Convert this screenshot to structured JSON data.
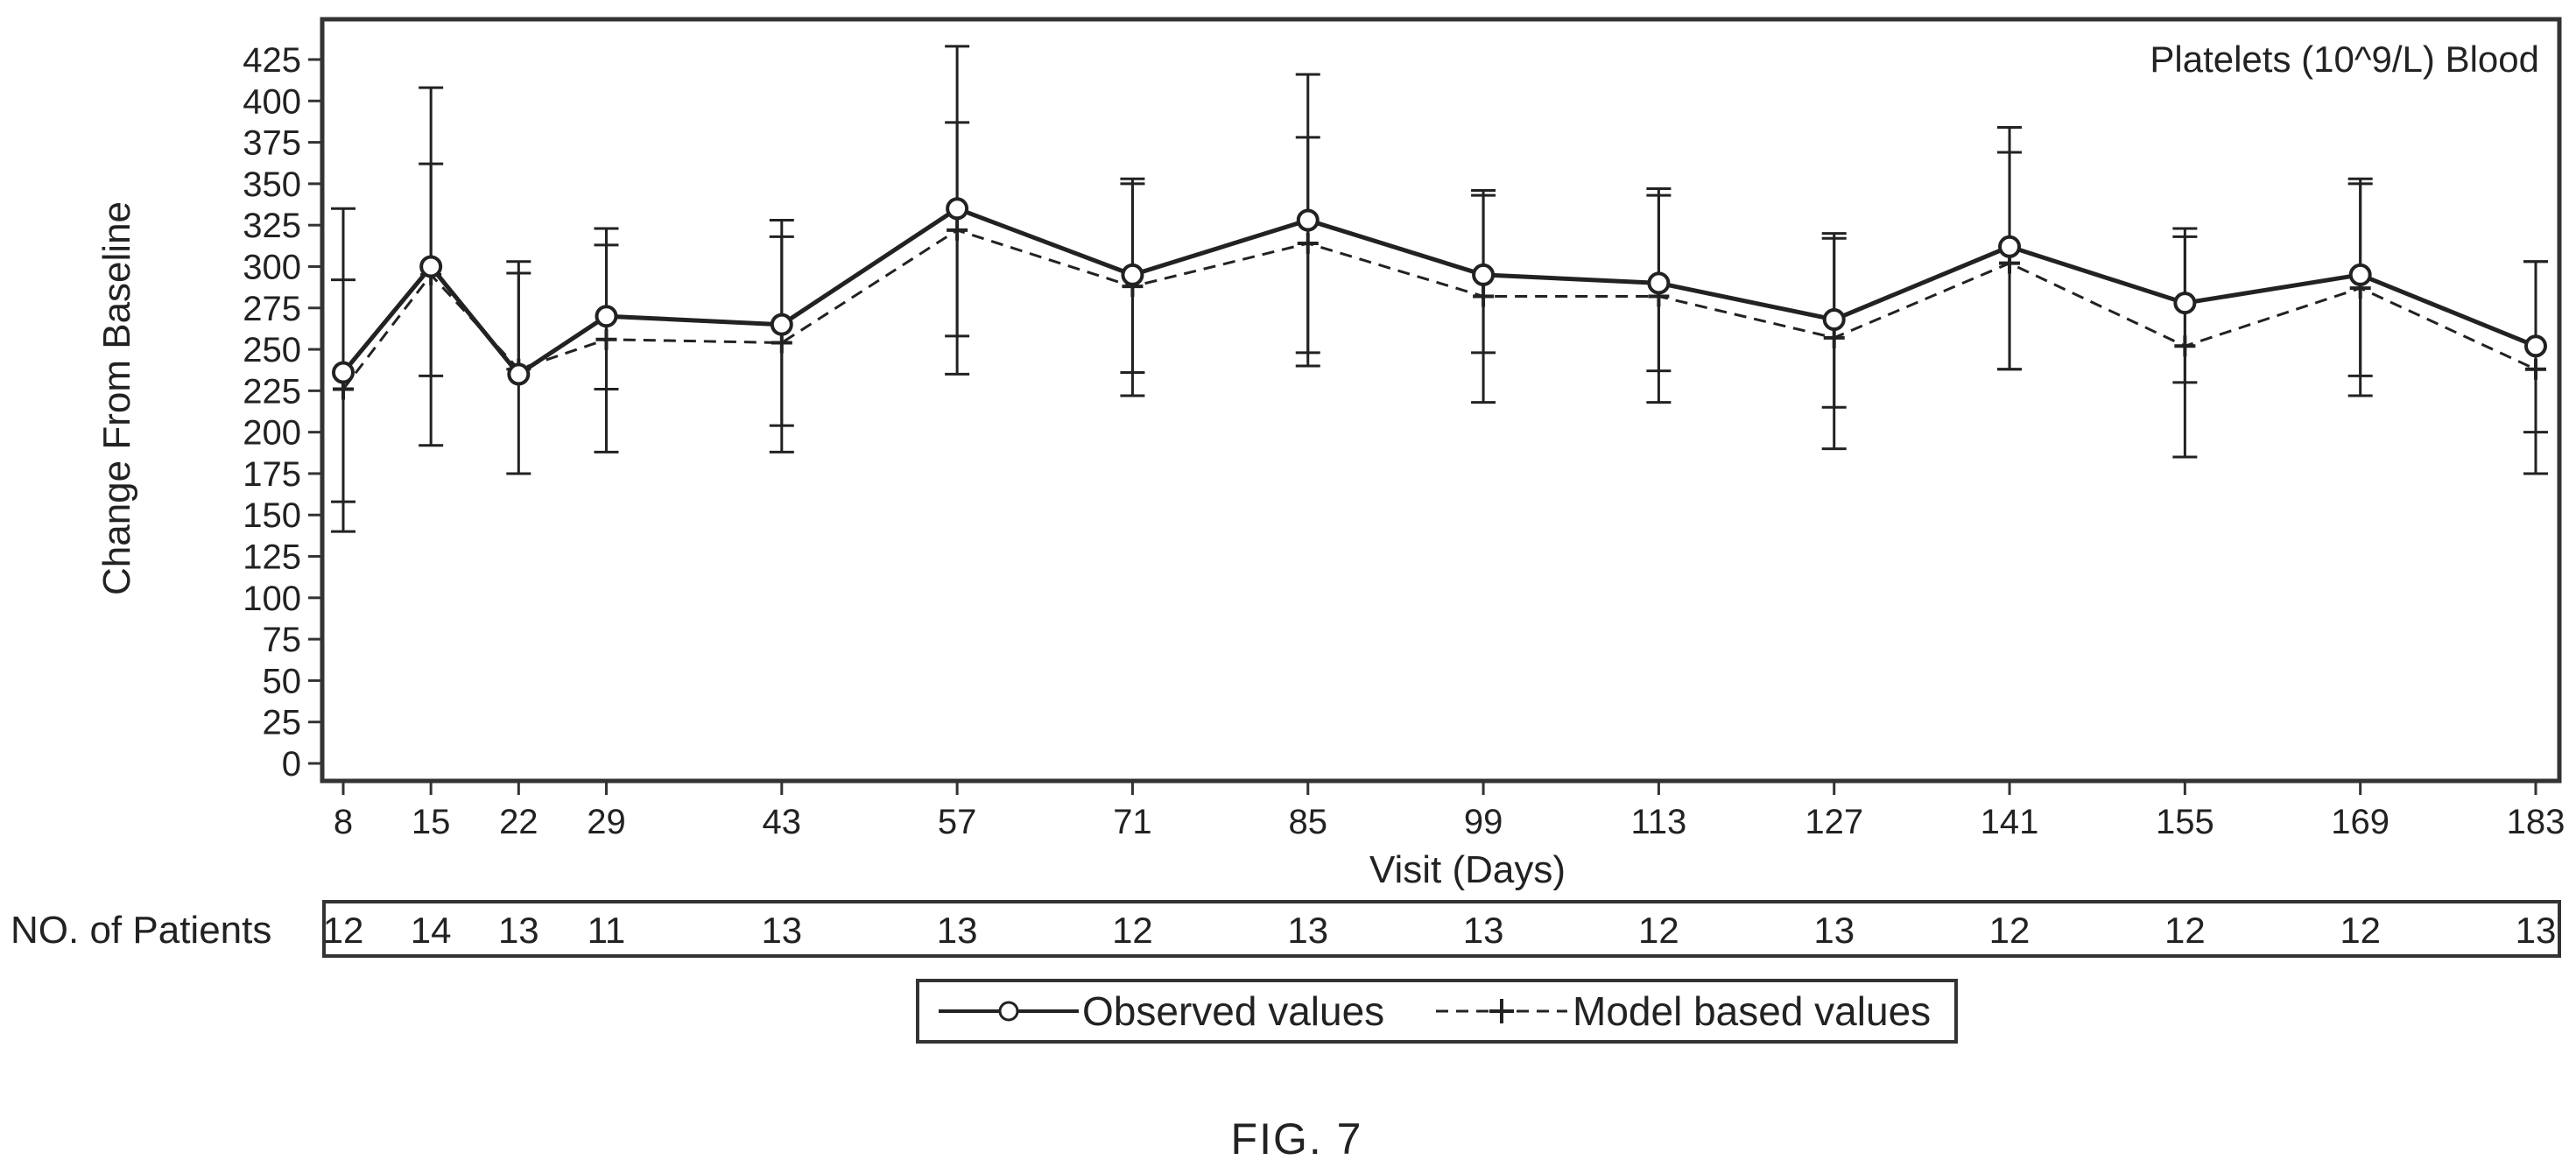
{
  "figure_caption": "FIG. 7",
  "patients_row_label": "NO. of Patients",
  "chart_data": {
    "type": "line",
    "title": "Platelets (10^9/L) Blood",
    "xlabel": "Visit (Days)",
    "ylabel": "Change From Baseline",
    "x": [
      8,
      15,
      22,
      29,
      43,
      57,
      71,
      85,
      99,
      113,
      127,
      141,
      155,
      169,
      183
    ],
    "xlim": [
      8,
      183
    ],
    "ylim": [
      0,
      425
    ],
    "yticks": [
      0,
      25,
      50,
      75,
      100,
      125,
      150,
      175,
      200,
      225,
      250,
      275,
      300,
      325,
      350,
      375,
      400,
      425
    ],
    "grid": false,
    "legend_position": "bottom",
    "series": [
      {
        "name": "Observed values",
        "style": "solid",
        "marker": "circle",
        "values": [
          236,
          300,
          235,
          270,
          265,
          335,
          295,
          328,
          295,
          290,
          268,
          312,
          278,
          295,
          252
        ],
        "error_low": [
          140,
          192,
          175,
          188,
          188,
          235,
          222,
          240,
          218,
          218,
          190,
          238,
          185,
          222,
          175
        ],
        "error_high": [
          335,
          408,
          303,
          323,
          328,
          433,
          353,
          416,
          346,
          347,
          320,
          384,
          323,
          353,
          303
        ]
      },
      {
        "name": "Model based values",
        "style": "dashed",
        "marker": "plus",
        "values": [
          226,
          295,
          238,
          256,
          254,
          322,
          288,
          314,
          282,
          282,
          257,
          302,
          252,
          287,
          238
        ],
        "error_low": [
          158,
          234,
          238,
          226,
          204,
          258,
          236,
          248,
          248,
          237,
          215,
          238,
          230,
          234,
          200
        ],
        "error_high": [
          292,
          362,
          296,
          313,
          318,
          387,
          350,
          378,
          343,
          343,
          317,
          369,
          318,
          350,
          303
        ]
      }
    ],
    "patients": [
      12,
      14,
      13,
      11,
      13,
      13,
      12,
      13,
      13,
      12,
      13,
      12,
      12,
      12,
      13
    ],
    "colors": {
      "observed": "#222222",
      "model": "#222222",
      "frame": "#333333"
    }
  }
}
